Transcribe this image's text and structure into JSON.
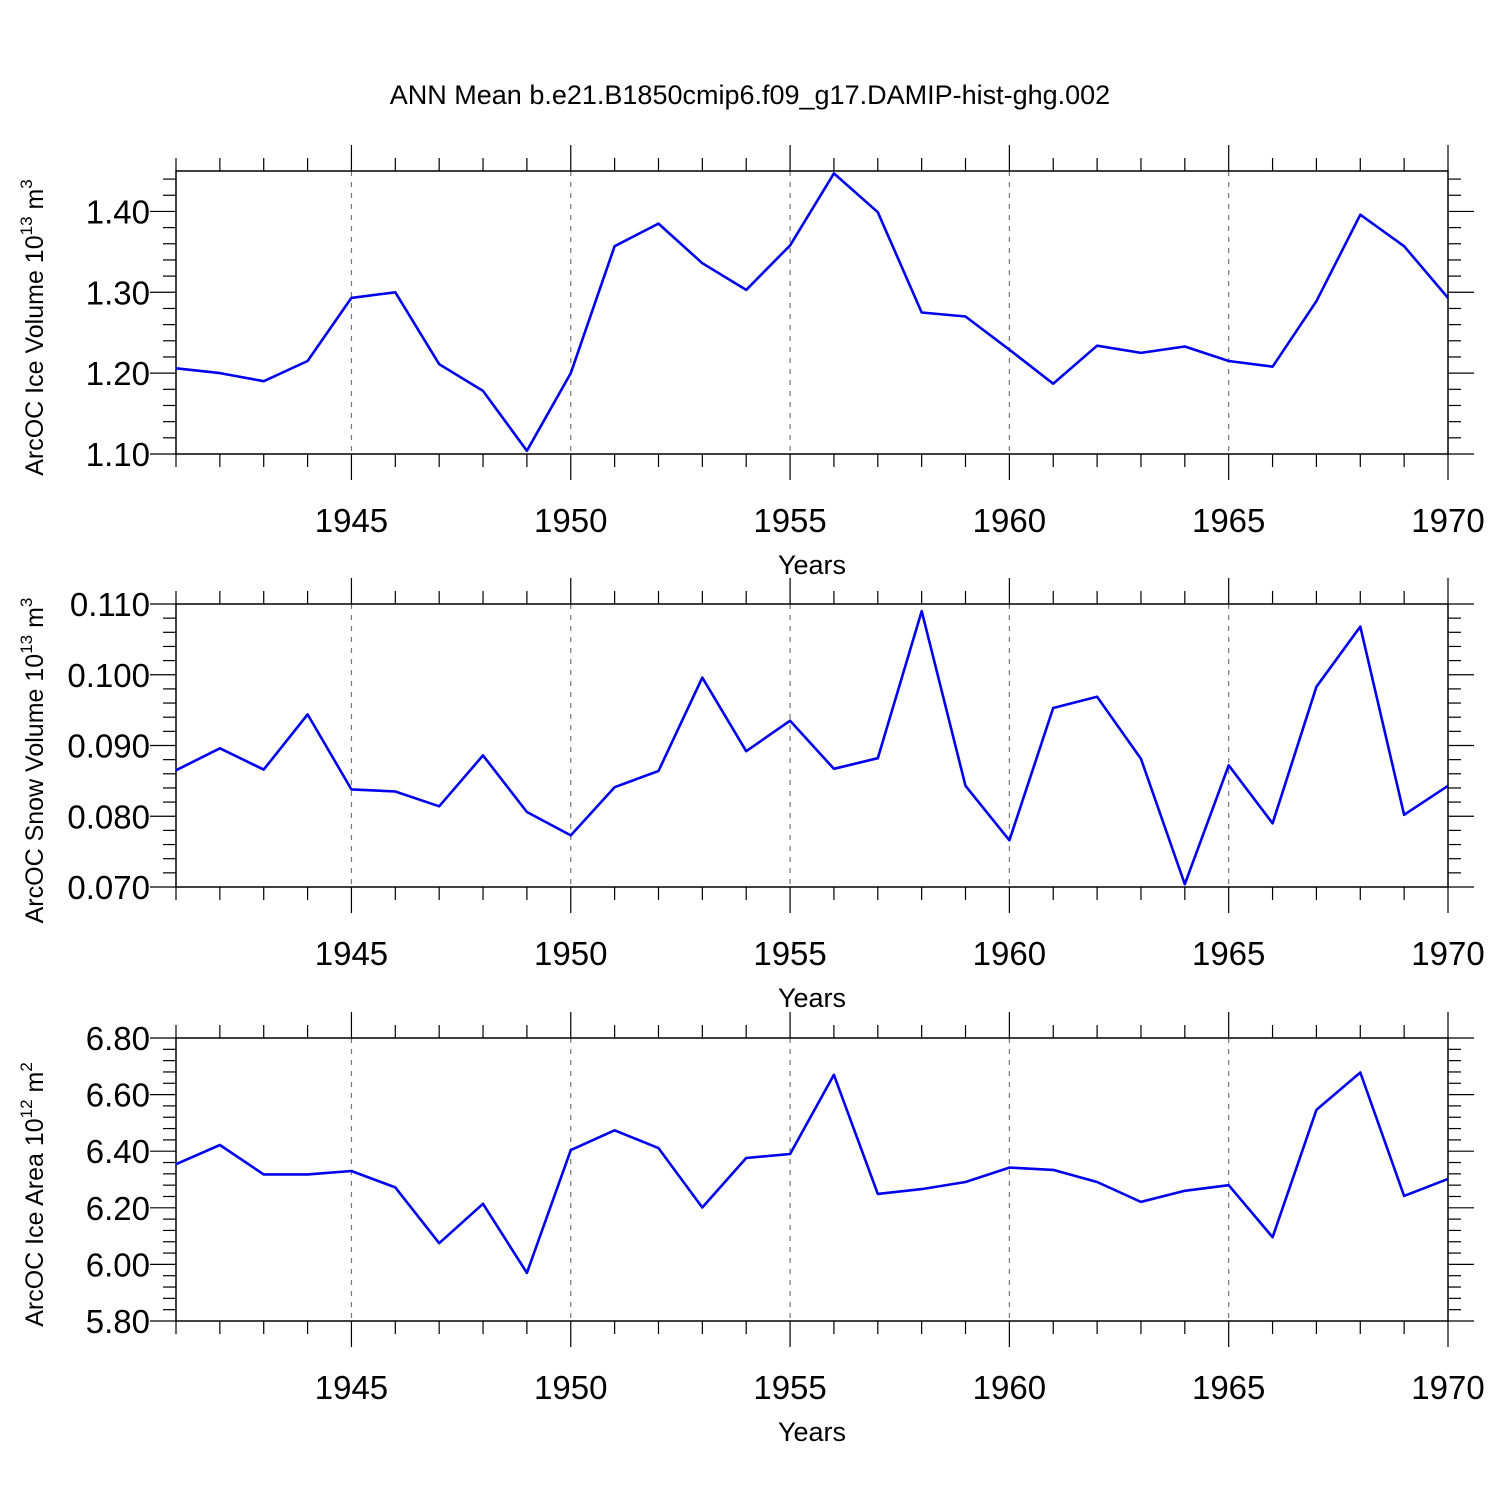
{
  "title": "ANN Mean b.e21.B1850cmip6.f09_g17.DAMIP-hist-ghg.002",
  "colors": {
    "line": "#0000ee",
    "grid": "#777777",
    "axis": "#000000"
  },
  "chart_data": [
    {
      "type": "line",
      "ylabel": {
        "main": "ArcOC Ice Volume 10",
        "exp": "13",
        "unit": " m",
        "unit_exp": "3"
      },
      "xlabel": "Years",
      "xlim": [
        1941,
        1970
      ],
      "ylim": [
        1.1,
        1.45
      ],
      "yticks": [
        1.1,
        1.2,
        1.3,
        1.4
      ],
      "ytick_labels": [
        "1.10",
        "1.20",
        "1.30",
        "1.40"
      ],
      "xticks": [
        1945,
        1950,
        1955,
        1960,
        1965,
        1970
      ],
      "xtick_labels": [
        "1945",
        "1950",
        "1955",
        "1960",
        "1965",
        "1970"
      ],
      "x": [
        1941,
        1942,
        1943,
        1944,
        1945,
        1946,
        1947,
        1948,
        1949,
        1950,
        1951,
        1952,
        1953,
        1954,
        1955,
        1956,
        1957,
        1958,
        1959,
        1960,
        1961,
        1962,
        1963,
        1964,
        1965,
        1966,
        1967,
        1968,
        1969,
        1970
      ],
      "series": [
        {
          "values": [
            1.206,
            1.2,
            1.19,
            1.215,
            1.293,
            1.3,
            1.211,
            1.178,
            1.104,
            1.2,
            1.357,
            1.385,
            1.336,
            1.303,
            1.358,
            1.447,
            1.399,
            1.275,
            1.27,
            1.229,
            1.187,
            1.234,
            1.225,
            1.233,
            1.215,
            1.208,
            1.289,
            1.396,
            1.357,
            1.293
          ]
        }
      ]
    },
    {
      "type": "line",
      "ylabel": {
        "main": "ArcOC Snow Volume 10",
        "exp": "13",
        "unit": " m",
        "unit_exp": "3"
      },
      "xlabel": "Years",
      "xlim": [
        1941,
        1970
      ],
      "ylim": [
        0.07,
        0.11
      ],
      "yticks": [
        0.07,
        0.08,
        0.09,
        0.1,
        0.11
      ],
      "ytick_labels": [
        "0.070",
        "0.080",
        "0.090",
        "0.100",
        "0.110"
      ],
      "xticks": [
        1945,
        1950,
        1955,
        1960,
        1965,
        1970
      ],
      "xtick_labels": [
        "1945",
        "1950",
        "1955",
        "1960",
        "1965",
        "1970"
      ],
      "x": [
        1941,
        1942,
        1943,
        1944,
        1945,
        1946,
        1947,
        1948,
        1949,
        1950,
        1951,
        1952,
        1953,
        1954,
        1955,
        1956,
        1957,
        1958,
        1959,
        1960,
        1961,
        1962,
        1963,
        1964,
        1965,
        1966,
        1967,
        1968,
        1969,
        1970
      ],
      "series": [
        {
          "values": [
            0.0865,
            0.0896,
            0.0866,
            0.0944,
            0.0838,
            0.0835,
            0.0814,
            0.0886,
            0.0806,
            0.0773,
            0.0841,
            0.0864,
            0.0996,
            0.0892,
            0.0935,
            0.0867,
            0.0882,
            0.109,
            0.0843,
            0.0766,
            0.0953,
            0.0969,
            0.0881,
            0.0704,
            0.0872,
            0.079,
            0.0983,
            0.1068,
            0.0802,
            0.0843
          ]
        }
      ]
    },
    {
      "type": "line",
      "ylabel": {
        "main": "ArcOC Ice Area 10",
        "exp": "12",
        "unit": " m",
        "unit_exp": "2"
      },
      "xlabel": "Years",
      "xlim": [
        1941,
        1970
      ],
      "ylim": [
        5.8,
        6.8
      ],
      "yticks": [
        5.8,
        6.0,
        6.2,
        6.4,
        6.6,
        6.8
      ],
      "ytick_labels": [
        "5.80",
        "6.00",
        "6.20",
        "6.40",
        "6.60",
        "6.80"
      ],
      "xticks": [
        1945,
        1950,
        1955,
        1960,
        1965,
        1970
      ],
      "xtick_labels": [
        "1945",
        "1950",
        "1955",
        "1960",
        "1965",
        "1970"
      ],
      "x": [
        1941,
        1942,
        1943,
        1944,
        1945,
        1946,
        1947,
        1948,
        1949,
        1950,
        1951,
        1952,
        1953,
        1954,
        1955,
        1956,
        1957,
        1958,
        1959,
        1960,
        1961,
        1962,
        1963,
        1964,
        1965,
        1966,
        1967,
        1968,
        1969,
        1970
      ],
      "series": [
        {
          "values": [
            6.354,
            6.422,
            6.318,
            6.318,
            6.33,
            6.272,
            6.075,
            6.214,
            5.97,
            6.404,
            6.474,
            6.411,
            6.201,
            6.376,
            6.39,
            6.67,
            6.249,
            6.266,
            6.291,
            6.342,
            6.334,
            6.291,
            6.221,
            6.26,
            6.28,
            6.096,
            6.546,
            6.678,
            6.242,
            6.302
          ]
        }
      ]
    }
  ]
}
